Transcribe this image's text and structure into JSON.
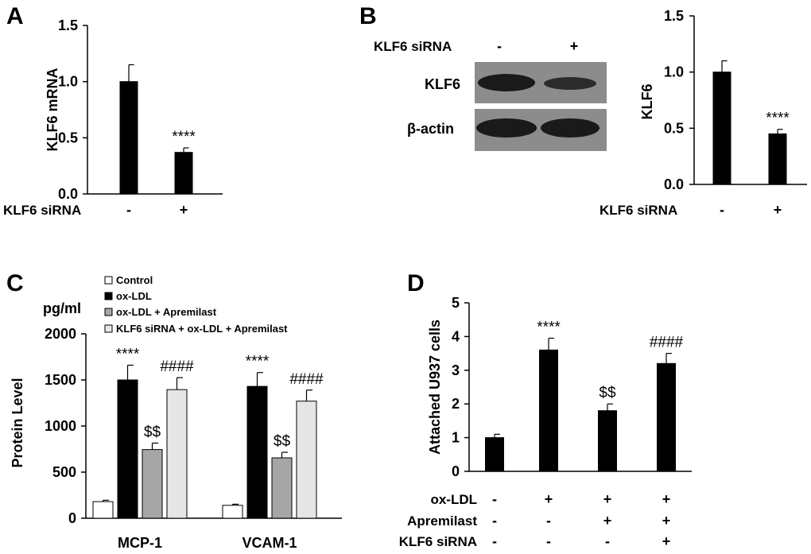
{
  "panel_letters": [
    "A",
    "B",
    "C",
    "D"
  ],
  "western_blot": {
    "header_label": "KLF6 siRNA",
    "lane_marks": [
      "-",
      "+"
    ],
    "row_labels": [
      "KLF6",
      "β-actin"
    ]
  },
  "colors": {
    "black": "#000000",
    "control": "#ffffff",
    "apremilast": "#a6a6a6",
    "klf6_combo": "#e6e6e6"
  },
  "chart_data": [
    {
      "panel": "A",
      "type": "bar",
      "title": "",
      "ylabel": "KLF6 mRNA",
      "xlabel": "",
      "ylim": [
        0,
        1.5
      ],
      "yticks": [
        "0.0",
        "0.5",
        "1.0",
        "1.5"
      ],
      "categories": [
        "-",
        "+"
      ],
      "category_row_label": "KLF6 siRNA",
      "values": [
        1.0,
        0.37
      ],
      "errors": [
        0.15,
        0.04
      ],
      "annotations": [
        "",
        "****"
      ]
    },
    {
      "panel": "B",
      "type": "bar",
      "title": "",
      "ylabel": "KLF6",
      "xlabel": "",
      "ylim": [
        0,
        1.5
      ],
      "yticks": [
        "0.0",
        "0.5",
        "1.0",
        "1.5"
      ],
      "categories": [
        "-",
        "+"
      ],
      "category_row_label": "KLF6 siRNA",
      "values": [
        1.0,
        0.45
      ],
      "errors": [
        0.1,
        0.04
      ],
      "annotations": [
        "",
        "****"
      ]
    },
    {
      "panel": "C",
      "type": "bar",
      "title": "",
      "unit_label": "pg/ml",
      "ylabel": "Protein Level",
      "xlabel": "",
      "ylim": [
        0,
        2000
      ],
      "yticks": [
        "0",
        "500",
        "1000",
        "1500",
        "2000"
      ],
      "categories": [
        "MCP-1",
        "VCAM-1"
      ],
      "legend_position": "top",
      "series": [
        {
          "name": "Control",
          "color": "#ffffff",
          "values": [
            180,
            140
          ],
          "errors": [
            15,
            12
          ],
          "annotations": [
            "",
            ""
          ]
        },
        {
          "name": "ox-LDL",
          "color": "#000000",
          "values": [
            1500,
            1430
          ],
          "errors": [
            160,
            150
          ],
          "annotations": [
            "****",
            "****"
          ]
        },
        {
          "name": "ox-LDL + Apremilast",
          "color": "#a6a6a6",
          "values": [
            745,
            655
          ],
          "errors": [
            70,
            60
          ],
          "annotations": [
            "$$",
            "$$"
          ]
        },
        {
          "name": "KLF6 siRNA + ox-LDL + Apremilast",
          "color": "#e6e6e6",
          "values": [
            1395,
            1270
          ],
          "errors": [
            130,
            120
          ],
          "annotations": [
            "####",
            "####"
          ]
        }
      ]
    },
    {
      "panel": "D",
      "type": "bar",
      "title": "",
      "ylabel": "Attached U937 cells",
      "xlabel": "",
      "ylim": [
        0,
        5
      ],
      "yticks": [
        "0",
        "1",
        "2",
        "3",
        "4",
        "5"
      ],
      "values": [
        1.0,
        3.6,
        1.8,
        3.2
      ],
      "errors": [
        0.1,
        0.35,
        0.2,
        0.3
      ],
      "annotations": [
        "",
        "****",
        "$$",
        "####"
      ],
      "condition_rows": [
        {
          "label": "ox-LDL",
          "marks": [
            "-",
            "+",
            "+",
            "+"
          ]
        },
        {
          "label": "Apremilast",
          "marks": [
            "-",
            "-",
            "+",
            "+"
          ]
        },
        {
          "label": "KLF6 siRNA",
          "marks": [
            "-",
            "-",
            "-",
            "+"
          ]
        }
      ]
    }
  ]
}
